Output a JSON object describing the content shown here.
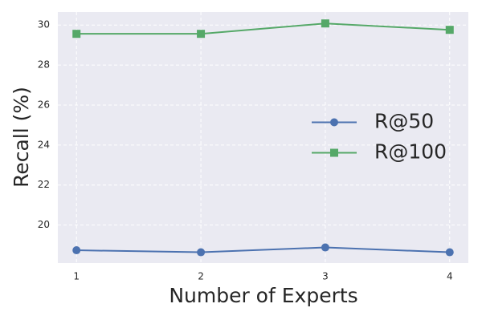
{
  "chart_data": {
    "type": "line",
    "x": [
      1,
      2,
      3,
      4
    ],
    "series": [
      {
        "name": "R@50",
        "color": "#4c72b0",
        "marker": "circle",
        "values": [
          18.74,
          18.64,
          18.88,
          18.64
        ]
      },
      {
        "name": "R@100",
        "color": "#55a868",
        "marker": "square",
        "values": [
          29.56,
          29.56,
          30.08,
          29.76
        ]
      }
    ],
    "xlabel": "Number of Experts",
    "ylabel": "Recall (%)",
    "xlim": [
      0.85,
      4.15
    ],
    "xticks": [
      1,
      2,
      3,
      4
    ],
    "ylim": [
      18.1,
      30.65
    ],
    "yticks": [
      20,
      22,
      24,
      26,
      28,
      30
    ],
    "grid": true,
    "legend": "center right"
  }
}
